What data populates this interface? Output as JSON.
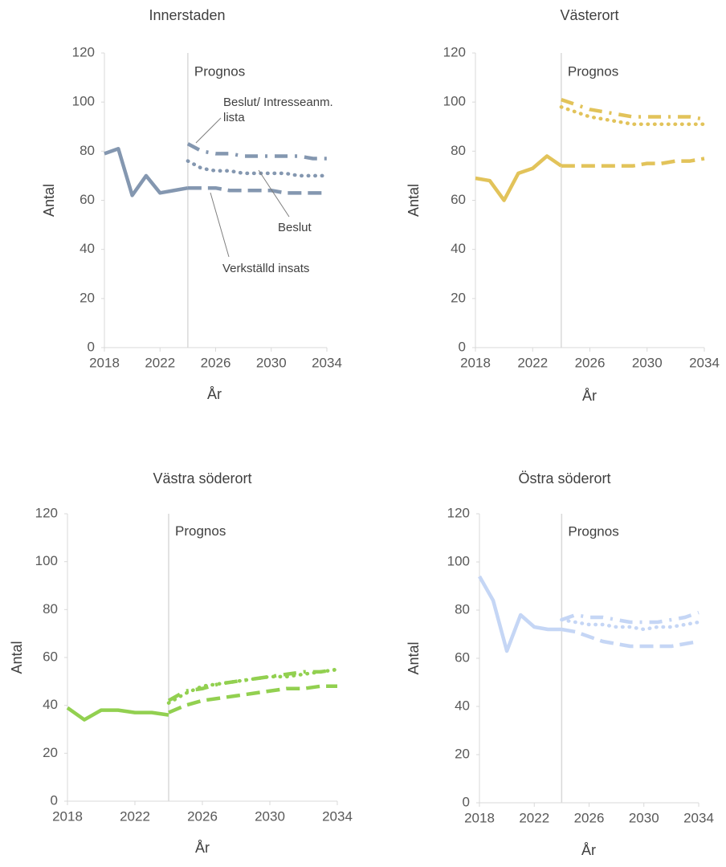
{
  "chart_data": [
    {
      "type": "line",
      "title": "Innerstaden",
      "xlabel": "År",
      "ylabel": "Antal",
      "annotation": "Prognos",
      "forecast_start": 2024,
      "x": [
        2018,
        2019,
        2020,
        2021,
        2022,
        2023,
        2024,
        2025,
        2026,
        2027,
        2028,
        2029,
        2030,
        2031,
        2032,
        2033,
        2034
      ],
      "xlim": [
        2018,
        2034
      ],
      "xticks": [
        2018,
        2022,
        2026,
        2030,
        2034
      ],
      "ylim": [
        0,
        120
      ],
      "yticks": [
        0,
        20,
        40,
        60,
        80,
        100,
        120
      ],
      "series": [
        {
          "color": "#8497b0",
          "dash": "solid",
          "values": [
            79,
            81,
            62,
            70,
            63,
            64,
            65,
            null,
            null,
            null,
            null,
            null,
            null,
            null,
            null,
            null,
            null
          ]
        },
        {
          "name": "Beslut/ Intresseanm. lista",
          "color": "#8497b0",
          "dash": "dashdot",
          "values": [
            null,
            null,
            null,
            null,
            null,
            null,
            83,
            80,
            79,
            79,
            78,
            78,
            78,
            78,
            78,
            77,
            77
          ]
        },
        {
          "name": "Beslut",
          "color": "#8497b0",
          "dash": "dotted",
          "values": [
            null,
            null,
            null,
            null,
            null,
            null,
            76,
            73,
            72,
            72,
            71,
            71,
            71,
            71,
            70,
            70,
            70
          ]
        },
        {
          "name": "Verkställd insats",
          "color": "#8497b0",
          "dash": "dashed",
          "values": [
            null,
            null,
            null,
            null,
            null,
            null,
            65,
            65,
            65,
            64,
            64,
            64,
            64,
            63,
            63,
            63,
            63
          ]
        }
      ]
    },
    {
      "type": "line",
      "title": "Västerort",
      "xlabel": "År",
      "ylabel": "Antal",
      "annotation": "Prognos",
      "forecast_start": 2024,
      "x": [
        2018,
        2019,
        2020,
        2021,
        2022,
        2023,
        2024,
        2025,
        2026,
        2027,
        2028,
        2029,
        2030,
        2031,
        2032,
        2033,
        2034
      ],
      "xlim": [
        2018,
        2034
      ],
      "xticks": [
        2018,
        2022,
        2026,
        2030,
        2034
      ],
      "ylim": [
        0,
        120
      ],
      "yticks": [
        0,
        20,
        40,
        60,
        80,
        100,
        120
      ],
      "series": [
        {
          "color": "#e2c35a",
          "dash": "solid",
          "values": [
            69,
            68,
            60,
            71,
            73,
            78,
            74,
            null,
            null,
            null,
            null,
            null,
            null,
            null,
            null,
            null,
            null
          ]
        },
        {
          "color": "#e2c35a",
          "dash": "dashdot",
          "values": [
            null,
            null,
            null,
            null,
            null,
            null,
            101,
            99,
            97,
            96,
            95,
            94,
            94,
            94,
            94,
            94,
            93
          ]
        },
        {
          "color": "#e2c35a",
          "dash": "dotted",
          "values": [
            null,
            null,
            null,
            null,
            null,
            null,
            98,
            96,
            94,
            93,
            92,
            91,
            91,
            91,
            91,
            91,
            91
          ]
        },
        {
          "color": "#e2c35a",
          "dash": "dashed",
          "values": [
            null,
            null,
            null,
            null,
            null,
            null,
            74,
            74,
            74,
            74,
            74,
            74,
            75,
            75,
            76,
            76,
            77
          ]
        }
      ]
    },
    {
      "type": "line",
      "title": "Västra söderort",
      "xlabel": "År",
      "ylabel": "Antal",
      "annotation": "Prognos",
      "forecast_start": 2024,
      "x": [
        2018,
        2019,
        2020,
        2021,
        2022,
        2023,
        2024,
        2025,
        2026,
        2027,
        2028,
        2029,
        2030,
        2031,
        2032,
        2033,
        2034
      ],
      "xlim": [
        2018,
        2034
      ],
      "xticks": [
        2018,
        2022,
        2026,
        2030,
        2034
      ],
      "ylim": [
        0,
        120
      ],
      "yticks": [
        0,
        20,
        40,
        60,
        80,
        100,
        120
      ],
      "series": [
        {
          "color": "#92d050",
          "dash": "solid",
          "values": [
            39,
            34,
            38,
            38,
            37,
            37,
            36,
            null,
            null,
            null,
            null,
            null,
            null,
            null,
            null,
            null,
            null
          ]
        },
        {
          "color": "#92d050",
          "dash": "dashdot",
          "values": [
            null,
            null,
            null,
            null,
            null,
            null,
            42,
            46,
            47,
            49,
            50,
            51,
            52,
            53,
            54,
            54,
            55
          ]
        },
        {
          "color": "#92d050",
          "dash": "dotted",
          "values": [
            null,
            null,
            null,
            null,
            null,
            null,
            41,
            45,
            48,
            49,
            50,
            51,
            52,
            52,
            53,
            54,
            55
          ]
        },
        {
          "color": "#92d050",
          "dash": "dashed",
          "values": [
            null,
            null,
            null,
            null,
            null,
            null,
            37,
            40,
            42,
            43,
            44,
            45,
            46,
            47,
            47,
            48,
            48
          ]
        }
      ]
    },
    {
      "type": "line",
      "title": "Östra söderort",
      "xlabel": "År",
      "ylabel": "Antal",
      "annotation": "Prognos",
      "forecast_start": 2024,
      "x": [
        2018,
        2019,
        2020,
        2021,
        2022,
        2023,
        2024,
        2025,
        2026,
        2027,
        2028,
        2029,
        2030,
        2031,
        2032,
        2033,
        2034
      ],
      "xlim": [
        2018,
        2034
      ],
      "xticks": [
        2018,
        2022,
        2026,
        2030,
        2034
      ],
      "ylim": [
        0,
        120
      ],
      "yticks": [
        0,
        20,
        40,
        60,
        80,
        100,
        120
      ],
      "series": [
        {
          "color": "#c5d6f5",
          "dash": "solid",
          "values": [
            94,
            84,
            63,
            78,
            73,
            72,
            72,
            null,
            null,
            null,
            null,
            null,
            null,
            null,
            null,
            null,
            null
          ]
        },
        {
          "color": "#c5d6f5",
          "dash": "dashdot",
          "values": [
            null,
            null,
            null,
            null,
            null,
            null,
            76,
            78,
            77,
            77,
            76,
            75,
            75,
            75,
            76,
            77,
            79
          ]
        },
        {
          "color": "#c5d6f5",
          "dash": "dotted",
          "values": [
            null,
            null,
            null,
            null,
            null,
            null,
            76,
            75,
            74,
            74,
            73,
            73,
            72,
            73,
            73,
            74,
            75
          ]
        },
        {
          "color": "#c5d6f5",
          "dash": "dashed",
          "values": [
            null,
            null,
            null,
            null,
            null,
            null,
            72,
            71,
            69,
            67,
            66,
            65,
            65,
            65,
            65,
            66,
            67
          ]
        }
      ]
    }
  ]
}
